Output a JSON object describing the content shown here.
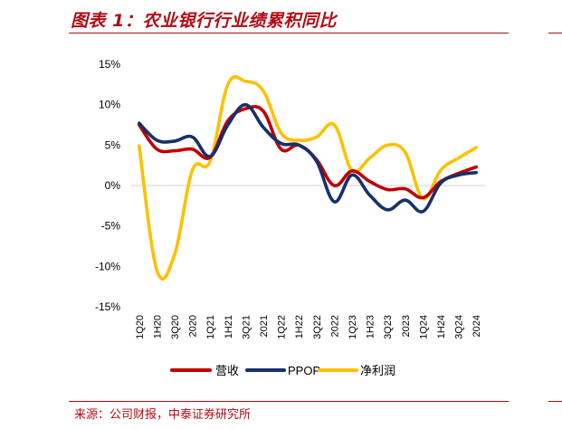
{
  "header": {
    "title": "图表 1：农业银行行业绩累积同比"
  },
  "footer": {
    "source": "来源：公司财报，中泰证券研究所"
  },
  "colors": {
    "accent": "#b20b14",
    "revenue": "#c00000",
    "ppop": "#17306b",
    "net_profit": "#ffc000"
  },
  "chart_data": {
    "type": "line",
    "title": "",
    "xlabel": "",
    "ylabel": "",
    "ylim": [
      -15,
      15
    ],
    "yticks": [
      15,
      10,
      5,
      0,
      -5,
      -10,
      -15
    ],
    "ytick_labels": [
      "15%",
      "10%",
      "5%",
      "0%",
      "-5%",
      "-10%",
      "-15%"
    ],
    "grid": false,
    "legend_position": "bottom",
    "categories": [
      "1Q20",
      "1H20",
      "3Q20",
      "2020",
      "1Q21",
      "1H21",
      "3Q21",
      "2021",
      "1Q22",
      "1H22",
      "3Q22",
      "2022",
      "1Q23",
      "1H23",
      "3Q23",
      "2023",
      "1Q24",
      "1H24",
      "3Q24",
      "2024"
    ],
    "series": [
      {
        "name": "营收",
        "color": "#c00000",
        "values": [
          7.5,
          4.5,
          4.3,
          4.5,
          3.5,
          8.0,
          9.5,
          9.2,
          4.5,
          5.0,
          3.2,
          0.0,
          1.8,
          0.5,
          -0.5,
          -0.4,
          -1.5,
          0.5,
          1.5,
          2.3
        ]
      },
      {
        "name": "PPOP",
        "color": "#17306b",
        "values": [
          7.7,
          5.6,
          5.5,
          6.0,
          3.6,
          7.5,
          10.0,
          7.2,
          5.2,
          5.0,
          3.0,
          -2.0,
          1.3,
          -1.2,
          -3.0,
          -1.8,
          -3.2,
          0.3,
          1.3,
          1.6
        ]
      },
      {
        "name": "净利润",
        "color": "#ffc000",
        "values": [
          4.9,
          -10.5,
          -8.5,
          1.9,
          3.0,
          12.5,
          12.9,
          11.7,
          6.5,
          5.6,
          6.0,
          7.5,
          1.9,
          3.4,
          5.0,
          4.1,
          -1.6,
          1.9,
          3.4,
          4.7
        ]
      }
    ]
  }
}
